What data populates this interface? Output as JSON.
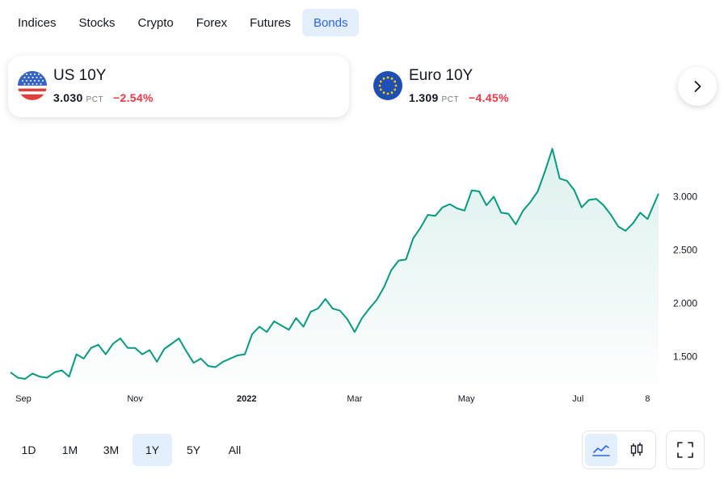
{
  "tabs": [
    {
      "label": "Indices",
      "active": false
    },
    {
      "label": "Stocks",
      "active": false
    },
    {
      "label": "Crypto",
      "active": false
    },
    {
      "label": "Forex",
      "active": false
    },
    {
      "label": "Futures",
      "active": false
    },
    {
      "label": "Bonds",
      "active": true
    }
  ],
  "cards": [
    {
      "title": "US 10Y",
      "price": "3.030",
      "unit": "PCT",
      "change": "−2.54%",
      "flag": "us-flag-icon",
      "selected": true
    },
    {
      "title": "Euro 10Y",
      "price": "1.309",
      "unit": "PCT",
      "change": "−4.45%",
      "flag": "eu-flag-icon",
      "selected": false
    }
  ],
  "next_icon": "chevron-right-icon",
  "ranges": [
    {
      "label": "1D",
      "active": false
    },
    {
      "label": "1M",
      "active": false
    },
    {
      "label": "3M",
      "active": false
    },
    {
      "label": "1Y",
      "active": true
    },
    {
      "label": "5Y",
      "active": false
    },
    {
      "label": "All",
      "active": false
    }
  ],
  "chart_type_buttons": [
    {
      "icon": "area-chart-icon",
      "active": true
    },
    {
      "icon": "candlestick-icon",
      "active": false
    }
  ],
  "fullscreen_icon": "fullscreen-icon",
  "colors": {
    "line": "#089981",
    "accent": "#2962ff",
    "negative": "#f23645",
    "active_bg": "#e3effd"
  },
  "chart_data": {
    "type": "area",
    "title": "",
    "xlabel": "",
    "ylabel": "",
    "y_ticks": [
      "3.000",
      "2.500",
      "2.000",
      "1.500"
    ],
    "ylim": [
      1.32,
      3.52
    ],
    "x_ticks": [
      {
        "label": "Sep",
        "date": "2021-09-01"
      },
      {
        "label": "Nov",
        "date": "2021-11-01"
      },
      {
        "label": "2022",
        "date": "2022-01-01",
        "bold": true
      },
      {
        "label": "Mar",
        "date": "2022-03-01"
      },
      {
        "label": "May",
        "date": "2022-05-01"
      },
      {
        "label": "Jul",
        "date": "2022-07-01"
      },
      {
        "label": "8",
        "date": "2022-08-08"
      }
    ],
    "grid": false,
    "series": [
      {
        "x": [
          "2021-08-25",
          "2021-08-29",
          "2021-09-02",
          "2021-09-06",
          "2021-09-10",
          "2021-09-14",
          "2021-09-18",
          "2021-09-22",
          "2021-09-26",
          "2021-09-30",
          "2021-10-04",
          "2021-10-08",
          "2021-10-12",
          "2021-10-16",
          "2021-10-20",
          "2021-10-24",
          "2021-10-28",
          "2021-11-01",
          "2021-11-05",
          "2021-11-09",
          "2021-11-13",
          "2021-11-17",
          "2021-11-21",
          "2021-11-25",
          "2021-11-29",
          "2021-12-03",
          "2021-12-07",
          "2021-12-11",
          "2021-12-15",
          "2021-12-19",
          "2021-12-23",
          "2021-12-27",
          "2021-12-31",
          "2022-01-04",
          "2022-01-08",
          "2022-01-12",
          "2022-01-16",
          "2022-01-20",
          "2022-01-24",
          "2022-01-28",
          "2022-02-01",
          "2022-02-05",
          "2022-02-09",
          "2022-02-13",
          "2022-02-17",
          "2022-02-21",
          "2022-02-25",
          "2022-03-01",
          "2022-03-05",
          "2022-03-09",
          "2022-03-13",
          "2022-03-17",
          "2022-03-21",
          "2022-03-25",
          "2022-03-29",
          "2022-04-02",
          "2022-04-06",
          "2022-04-10",
          "2022-04-14",
          "2022-04-18",
          "2022-04-22",
          "2022-04-26",
          "2022-04-30",
          "2022-05-04",
          "2022-05-08",
          "2022-05-12",
          "2022-05-16",
          "2022-05-20",
          "2022-05-24",
          "2022-05-28",
          "2022-06-01",
          "2022-06-05",
          "2022-06-09",
          "2022-06-13",
          "2022-06-17",
          "2022-06-21",
          "2022-06-25",
          "2022-06-29",
          "2022-07-03",
          "2022-07-07",
          "2022-07-11",
          "2022-07-15",
          "2022-07-19",
          "2022-07-23",
          "2022-07-27",
          "2022-07-31",
          "2022-08-04",
          "2022-08-08",
          "2022-08-12",
          "2022-08-14"
        ],
        "values": [
          1.35,
          1.3,
          1.29,
          1.34,
          1.31,
          1.3,
          1.35,
          1.37,
          1.31,
          1.52,
          1.48,
          1.58,
          1.61,
          1.52,
          1.62,
          1.67,
          1.58,
          1.58,
          1.52,
          1.56,
          1.45,
          1.57,
          1.62,
          1.67,
          1.55,
          1.44,
          1.48,
          1.41,
          1.4,
          1.45,
          1.48,
          1.51,
          1.52,
          1.71,
          1.78,
          1.73,
          1.83,
          1.79,
          1.75,
          1.86,
          1.78,
          1.92,
          1.95,
          2.04,
          1.95,
          1.93,
          1.85,
          1.73,
          1.86,
          1.95,
          2.03,
          2.15,
          2.31,
          2.4,
          2.41,
          2.61,
          2.71,
          2.83,
          2.82,
          2.9,
          2.93,
          2.89,
          2.87,
          3.06,
          3.05,
          2.92,
          3.0,
          2.85,
          2.84,
          2.74,
          2.87,
          2.95,
          3.05,
          3.24,
          3.45,
          3.17,
          3.15,
          3.06,
          2.9,
          2.97,
          2.98,
          2.92,
          2.83,
          2.72,
          2.68,
          2.75,
          2.85,
          2.79,
          2.95,
          3.03
        ]
      }
    ]
  }
}
